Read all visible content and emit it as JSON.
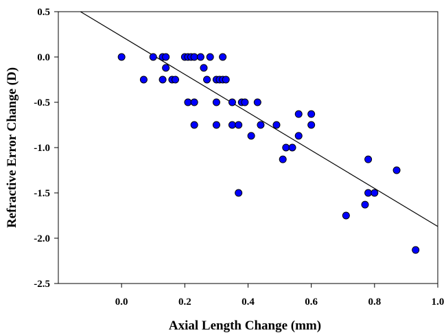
{
  "chart_data": {
    "type": "scatter",
    "xlabel": "Axial Length Change (mm)",
    "ylabel": "Refractive Error Change (D)",
    "xlim": [
      -0.2,
      1.0
    ],
    "ylim": [
      -2.5,
      0.5
    ],
    "x_ticks": [
      "0.0",
      "0.2",
      "0.4",
      "0.6",
      "0.8",
      "1.0"
    ],
    "y_ticks": [
      "0.5",
      "0.0",
      "-0.5",
      "-1.0",
      "-1.5",
      "-2.0",
      "-2.5"
    ],
    "grid": false,
    "marker_color": "#0000ff",
    "marker_edge_color": "#000000",
    "points": [
      [
        0.0,
        0.0
      ],
      [
        0.07,
        -0.25
      ],
      [
        0.1,
        0.0
      ],
      [
        0.13,
        0.0
      ],
      [
        0.13,
        -0.25
      ],
      [
        0.14,
        0.0
      ],
      [
        0.14,
        -0.12
      ],
      [
        0.16,
        -0.25
      ],
      [
        0.17,
        -0.25
      ],
      [
        0.2,
        0.0
      ],
      [
        0.21,
        0.0
      ],
      [
        0.21,
        -0.5
      ],
      [
        0.22,
        0.0
      ],
      [
        0.23,
        0.0
      ],
      [
        0.23,
        -0.5
      ],
      [
        0.23,
        -0.75
      ],
      [
        0.25,
        0.0
      ],
      [
        0.26,
        -0.12
      ],
      [
        0.27,
        -0.25
      ],
      [
        0.28,
        0.0
      ],
      [
        0.3,
        -0.25
      ],
      [
        0.3,
        -0.5
      ],
      [
        0.3,
        -0.75
      ],
      [
        0.31,
        -0.25
      ],
      [
        0.32,
        0.0
      ],
      [
        0.32,
        -0.25
      ],
      [
        0.33,
        -0.25
      ],
      [
        0.35,
        -0.5
      ],
      [
        0.35,
        -0.75
      ],
      [
        0.37,
        -0.75
      ],
      [
        0.37,
        -1.5
      ],
      [
        0.38,
        -0.5
      ],
      [
        0.39,
        -0.5
      ],
      [
        0.41,
        -0.87
      ],
      [
        0.43,
        -0.5
      ],
      [
        0.44,
        -0.75
      ],
      [
        0.49,
        -0.75
      ],
      [
        0.51,
        -1.13
      ],
      [
        0.52,
        -1.0
      ],
      [
        0.54,
        -1.0
      ],
      [
        0.56,
        -0.63
      ],
      [
        0.56,
        -0.87
      ],
      [
        0.6,
        -0.63
      ],
      [
        0.6,
        -0.75
      ],
      [
        0.71,
        -1.75
      ],
      [
        0.77,
        -1.63
      ],
      [
        0.78,
        -1.13
      ],
      [
        0.78,
        -1.5
      ],
      [
        0.8,
        -1.5
      ],
      [
        0.87,
        -1.25
      ],
      [
        0.93,
        -2.13
      ]
    ],
    "regression_line": {
      "x": [
        -0.13,
        1.0
      ],
      "y": [
        0.5,
        -1.87
      ]
    }
  }
}
